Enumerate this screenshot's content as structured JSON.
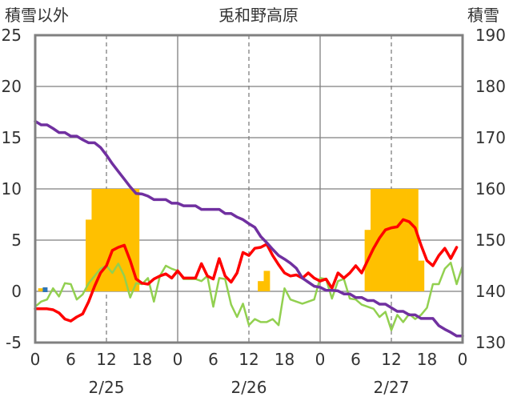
{
  "chart_data": {
    "type": "combo",
    "title": "兎和野高原",
    "left_axis": {
      "label": "積雪以外",
      "min": -5,
      "max": 25,
      "ticks": [
        -5,
        0,
        5,
        10,
        15,
        20,
        25
      ]
    },
    "right_axis": {
      "label": "積雪",
      "min": 130,
      "max": 190,
      "ticks": [
        130,
        140,
        150,
        160,
        170,
        180,
        190
      ]
    },
    "x_axis": {
      "unit": "hours",
      "min": 0,
      "max": 72,
      "tick_values": [
        0,
        6,
        12,
        18,
        24,
        30,
        36,
        42,
        48,
        54,
        60,
        66,
        72
      ],
      "tick_labels": [
        "0",
        "6",
        "12",
        "18",
        "0",
        "6",
        "12",
        "18",
        "0",
        "6",
        "12",
        "18",
        "0"
      ],
      "date_labels": [
        {
          "label": "2/25",
          "at": 12
        },
        {
          "label": "2/26",
          "at": 36
        },
        {
          "label": "2/27",
          "at": 60
        }
      ],
      "solid_day_lines": [
        24,
        48
      ],
      "dashed_lines": [
        12,
        36,
        60
      ]
    },
    "gridlines_y": [
      0,
      5,
      10,
      15,
      20
    ],
    "colors": {
      "bars": "#ffc000",
      "red_series": "#ff0000",
      "green_series": "#92d050",
      "purple_series": "#7030a0",
      "frame": "#808080"
    },
    "bars": {
      "axis": "left",
      "values": [
        [
          1,
          0.3
        ],
        [
          9,
          7
        ],
        [
          10,
          10
        ],
        [
          11,
          10
        ],
        [
          12,
          10
        ],
        [
          13,
          10
        ],
        [
          14,
          10
        ],
        [
          15,
          10
        ],
        [
          16,
          10
        ],
        [
          17,
          10
        ],
        [
          38,
          1
        ],
        [
          39,
          2
        ],
        [
          56,
          6
        ],
        [
          57,
          10
        ],
        [
          58,
          10
        ],
        [
          59,
          10
        ],
        [
          60,
          10
        ],
        [
          61,
          10
        ],
        [
          62,
          10
        ],
        [
          63,
          10
        ],
        [
          64,
          10
        ],
        [
          65,
          3
        ]
      ]
    },
    "series": [
      {
        "axis": "left",
        "color": "#ff0000",
        "points": [
          [
            0,
            -1.7
          ],
          [
            1,
            -1.7
          ],
          [
            2,
            -1.7
          ],
          [
            3,
            -1.8
          ],
          [
            4,
            -2.1
          ],
          [
            5,
            -2.7
          ],
          [
            6,
            -2.9
          ],
          [
            7,
            -2.5
          ],
          [
            8,
            -2.2
          ],
          [
            9,
            -1
          ],
          [
            10,
            0.5
          ],
          [
            11,
            1.8
          ],
          [
            12,
            2.5
          ],
          [
            13,
            4
          ],
          [
            14,
            4.3
          ],
          [
            15,
            4.5
          ],
          [
            16,
            3
          ],
          [
            17,
            1.2
          ],
          [
            18,
            0.8
          ],
          [
            19,
            0.7
          ],
          [
            20,
            1.2
          ],
          [
            21,
            1.5
          ],
          [
            22,
            1.7
          ],
          [
            23,
            1.3
          ],
          [
            24,
            2
          ],
          [
            25,
            1.3
          ],
          [
            26,
            1.3
          ],
          [
            27,
            1.3
          ],
          [
            28,
            2.7
          ],
          [
            29,
            1.5
          ],
          [
            30,
            1.2
          ],
          [
            31,
            3.2
          ],
          [
            32,
            1.5
          ],
          [
            33,
            0.9
          ],
          [
            34,
            1.8
          ],
          [
            35,
            3.8
          ],
          [
            36,
            3.5
          ],
          [
            37,
            4.2
          ],
          [
            38,
            4.3
          ],
          [
            39,
            4.6
          ],
          [
            40,
            3.5
          ],
          [
            41,
            2.6
          ],
          [
            42,
            1.8
          ],
          [
            43,
            1.5
          ],
          [
            44,
            1.6
          ],
          [
            45,
            1.3
          ],
          [
            46,
            1.8
          ],
          [
            47,
            1.3
          ],
          [
            48,
            1
          ],
          [
            49,
            1.2
          ],
          [
            50,
            0.3
          ],
          [
            51,
            1.8
          ],
          [
            52,
            1.3
          ],
          [
            53,
            1.8
          ],
          [
            54,
            2.5
          ],
          [
            55,
            1.8
          ],
          [
            56,
            3
          ],
          [
            57,
            4.2
          ],
          [
            58,
            5.2
          ],
          [
            59,
            6
          ],
          [
            60,
            6.2
          ],
          [
            61,
            6.3
          ],
          [
            62,
            7
          ],
          [
            63,
            6.8
          ],
          [
            64,
            6.2
          ],
          [
            65,
            4.5
          ],
          [
            66,
            3
          ],
          [
            67,
            2.5
          ],
          [
            68,
            3.5
          ],
          [
            69,
            4.2
          ],
          [
            70,
            3.2
          ],
          [
            71,
            4.3
          ]
        ]
      },
      {
        "axis": "left",
        "color": "#92d050",
        "points": [
          [
            0,
            -1.5
          ],
          [
            1,
            -1
          ],
          [
            2,
            -0.8
          ],
          [
            3,
            0.3
          ],
          [
            4,
            -0.5
          ],
          [
            5,
            0.8
          ],
          [
            6,
            0.7
          ],
          [
            7,
            -0.8
          ],
          [
            8,
            -0.3
          ],
          [
            9,
            0.8
          ],
          [
            10,
            1.5
          ],
          [
            11,
            2.2
          ],
          [
            12,
            2.5
          ],
          [
            13,
            1.8
          ],
          [
            14,
            2.7
          ],
          [
            15,
            1.5
          ],
          [
            16,
            -0.6
          ],
          [
            17,
            0.8
          ],
          [
            18,
            0.7
          ],
          [
            19,
            1.3
          ],
          [
            20,
            -1
          ],
          [
            21,
            1.5
          ],
          [
            22,
            2.5
          ],
          [
            23,
            2.2
          ],
          [
            24,
            2
          ],
          [
            25,
            1.2
          ],
          [
            26,
            1.2
          ],
          [
            27,
            1.2
          ],
          [
            28,
            1
          ],
          [
            29,
            1.5
          ],
          [
            30,
            -1.5
          ],
          [
            31,
            1.3
          ],
          [
            32,
            1.2
          ],
          [
            33,
            -1.3
          ],
          [
            34,
            -2.5
          ],
          [
            35,
            -1.2
          ],
          [
            36,
            -3.3
          ],
          [
            37,
            -2.7
          ],
          [
            38,
            -3
          ],
          [
            39,
            -3
          ],
          [
            40,
            -2.7
          ],
          [
            41,
            -3.3
          ],
          [
            42,
            0.3
          ],
          [
            43,
            -0.8
          ],
          [
            44,
            -1
          ],
          [
            45,
            -1.2
          ],
          [
            46,
            -1
          ],
          [
            47,
            -0.8
          ],
          [
            48,
            1.3
          ],
          [
            49,
            1.2
          ],
          [
            50,
            -0.7
          ],
          [
            51,
            1
          ],
          [
            52,
            1.2
          ],
          [
            53,
            -0.7
          ],
          [
            54,
            -0.8
          ],
          [
            55,
            -1.3
          ],
          [
            56,
            -1.5
          ],
          [
            57,
            -1.7
          ],
          [
            58,
            -2.5
          ],
          [
            59,
            -2
          ],
          [
            60,
            -3.8
          ],
          [
            61,
            -2.3
          ],
          [
            62,
            -3
          ],
          [
            63,
            -2.2
          ],
          [
            64,
            -2.7
          ],
          [
            65,
            -2.3
          ],
          [
            66,
            -1.6
          ],
          [
            67,
            0.7
          ],
          [
            68,
            0.7
          ],
          [
            69,
            2.2
          ],
          [
            70,
            2.8
          ],
          [
            71,
            0.7
          ],
          [
            72,
            2.5
          ]
        ]
      },
      {
        "axis": "right",
        "color": "#7030a0",
        "points": [
          [
            0,
            173.2
          ],
          [
            1,
            172.5
          ],
          [
            2,
            172.5
          ],
          [
            3,
            171.8
          ],
          [
            4,
            171
          ],
          [
            5,
            171
          ],
          [
            6,
            170.3
          ],
          [
            7,
            170.3
          ],
          [
            8,
            169.6
          ],
          [
            9,
            169
          ],
          [
            10,
            169
          ],
          [
            11,
            168.1
          ],
          [
            12,
            166.6
          ],
          [
            13,
            164.9
          ],
          [
            14,
            163.4
          ],
          [
            15,
            161.9
          ],
          [
            16,
            160.4
          ],
          [
            17,
            159.1
          ],
          [
            18,
            159
          ],
          [
            19,
            158.6
          ],
          [
            20,
            157.9
          ],
          [
            21,
            157.9
          ],
          [
            22,
            157.9
          ],
          [
            23,
            157.2
          ],
          [
            24,
            157.2
          ],
          [
            25,
            156.7
          ],
          [
            26,
            156.7
          ],
          [
            27,
            156.7
          ],
          [
            28,
            156
          ],
          [
            29,
            156
          ],
          [
            30,
            156
          ],
          [
            31,
            156
          ],
          [
            32,
            155.2
          ],
          [
            33,
            155.2
          ],
          [
            34,
            154.5
          ],
          [
            35,
            154
          ],
          [
            36,
            153.2
          ],
          [
            37,
            152.5
          ],
          [
            38,
            150.7
          ],
          [
            39,
            149.5
          ],
          [
            40,
            148.2
          ],
          [
            41,
            147
          ],
          [
            42,
            146.3
          ],
          [
            43,
            145.5
          ],
          [
            44,
            144.5
          ],
          [
            45,
            142.6
          ],
          [
            46,
            141.8
          ],
          [
            47,
            141
          ],
          [
            48,
            140.8
          ],
          [
            49,
            140.2
          ],
          [
            50,
            140.2
          ],
          [
            51,
            140.1
          ],
          [
            52,
            139.5
          ],
          [
            53,
            139.5
          ],
          [
            54,
            138.8
          ],
          [
            55,
            138.8
          ],
          [
            56,
            138.2
          ],
          [
            57,
            138.2
          ],
          [
            58,
            137.5
          ],
          [
            59,
            137.5
          ],
          [
            60,
            136.8
          ],
          [
            61,
            136.1
          ],
          [
            62,
            136.1
          ],
          [
            63,
            135.4
          ],
          [
            64,
            135.4
          ],
          [
            65,
            134.7
          ],
          [
            66,
            134.7
          ],
          [
            67,
            134.7
          ],
          [
            68,
            133.3
          ],
          [
            69,
            132.6
          ],
          [
            70,
            132
          ],
          [
            71,
            131.3
          ],
          [
            72,
            131.3
          ]
        ]
      }
    ],
    "marker": {
      "axis": "left",
      "x": 1,
      "y": 0,
      "color": "#2e75b6"
    }
  }
}
